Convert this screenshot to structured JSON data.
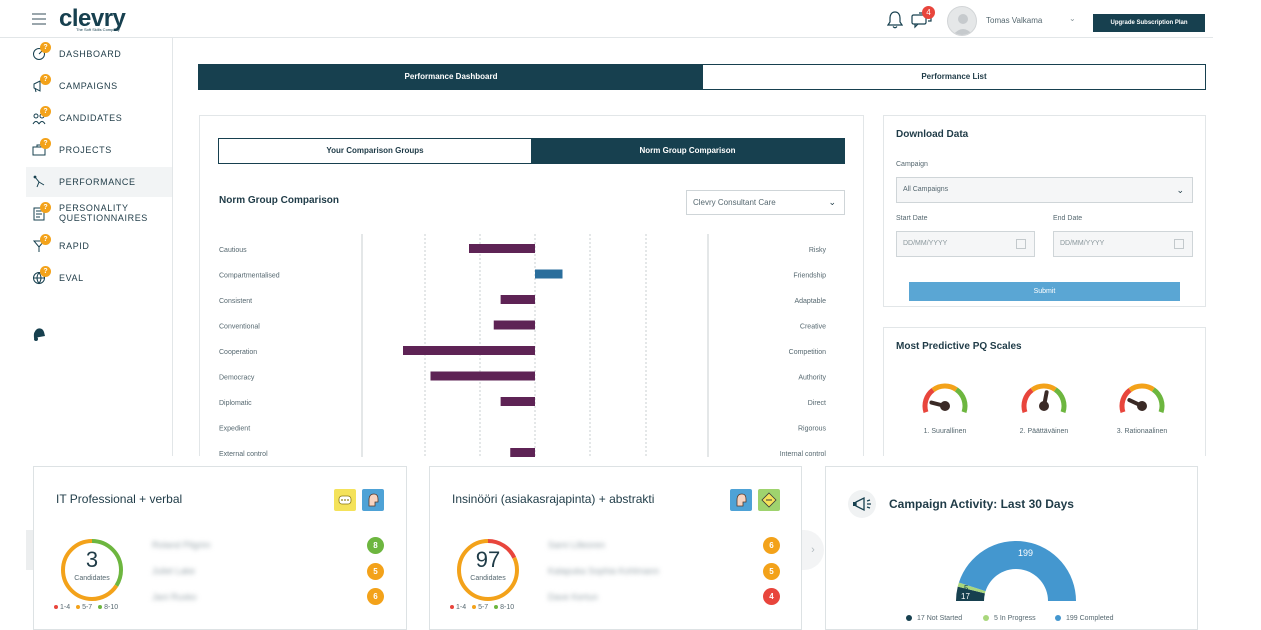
{
  "header": {
    "logo": "clevry",
    "logo_tagline": "The Soft Skills Company",
    "messages_badge": "4",
    "user_name": "Tomas Valkama",
    "upgrade_label": "Upgrade Subscription Plan"
  },
  "sidebar": {
    "items": [
      {
        "label": "DASHBOARD",
        "badge": "?"
      },
      {
        "label": "CAMPAIGNS",
        "badge": "?"
      },
      {
        "label": "CANDIDATES",
        "badge": "?"
      },
      {
        "label": "PROJECTS",
        "badge": "?"
      },
      {
        "label": "PERFORMANCE",
        "badge": ""
      },
      {
        "label": "PERSONALITY QUESTIONNAIRES",
        "badge": "?"
      },
      {
        "label": "RAPID",
        "badge": "?"
      },
      {
        "label": "EVAL",
        "badge": "?"
      }
    ]
  },
  "main_tabs": [
    {
      "label": "Performance Dashboard",
      "active": true
    },
    {
      "label": "Performance List",
      "active": false
    }
  ],
  "norm": {
    "tabs": [
      {
        "label": "Your Comparison Groups",
        "active": false
      },
      {
        "label": "Norm Group Comparison",
        "active": true
      }
    ],
    "title": "Norm Group Comparison",
    "select_value": "Clevry Consultant Care"
  },
  "chart_data": {
    "type": "bar",
    "orientation": "diverging-horizontal",
    "categories_left": [
      "Cautious",
      "Compartmentalised",
      "Consistent",
      "Conventional",
      "Cooperation",
      "Democracy",
      "Diplomatic",
      "Expedient",
      "External control"
    ],
    "categories_right": [
      "Risky",
      "Friendship",
      "Adaptable",
      "Creative",
      "Competition",
      "Authority",
      "Direct",
      "Rigorous",
      "Internal control"
    ],
    "values": [
      -2.4,
      1.0,
      -1.25,
      -1.5,
      -4.8,
      -3.8,
      -1.25,
      0,
      -0.9
    ],
    "xlim": [
      -6,
      6
    ],
    "colors": {
      "negative": "#5e2355",
      "positive": "#2a6e9c"
    },
    "grid": true
  },
  "download": {
    "title": "Download Data",
    "campaign_label": "Campaign",
    "campaign_value": "All Campaigns",
    "start_label": "Start Date",
    "start_placeholder": "DD/MM/YYYY",
    "end_label": "End Date",
    "end_placeholder": "DD/MM/YYYY",
    "submit_label": "Submit"
  },
  "pq": {
    "title": "Most Predictive PQ Scales",
    "gauges": [
      {
        "label": "1. Suurallinen",
        "value": 0.15
      },
      {
        "label": "2. Päättäväinen",
        "value": 0.55
      },
      {
        "label": "3. Rationaalinen",
        "value": 0.2
      }
    ]
  },
  "cards": [
    {
      "title": "IT Professional + verbal",
      "count": "3",
      "count_label": "Candidates",
      "legend": [
        "1-4",
        "5-7",
        "8-10"
      ],
      "rows": [
        {
          "name": "Roland Pilgrim",
          "score": "8",
          "color": "#6db63f"
        },
        {
          "name": "Juliet Lake",
          "score": "5",
          "color": "#f3a21a"
        },
        {
          "name": "Jani Rusko",
          "score": "6",
          "color": "#f3a21a"
        }
      ]
    },
    {
      "title": "Insinööri (asiakasrajapinta) + abstrakti",
      "count": "97",
      "count_label": "Candidates",
      "legend": [
        "1-4",
        "5-7",
        "8-10"
      ],
      "rows": [
        {
          "name": "Sami Lilleoren",
          "score": "6",
          "color": "#f3a21a"
        },
        {
          "name": "Kalapuka Sophia Kohlmann",
          "score": "5",
          "color": "#f3a21a"
        },
        {
          "name": "Dave Kertun",
          "score": "4",
          "color": "#e8453c"
        }
      ]
    }
  ],
  "activity": {
    "title": "Campaign Activity: Last 30 Days",
    "completed_value": "199",
    "in_progress_value": "5",
    "not_started_value": "17",
    "legend": [
      "17 Not Started",
      "5 In Progress",
      "199 Completed"
    ],
    "colors": {
      "not_started": "#17404f",
      "in_progress": "#a9d77c",
      "completed": "#4497cf"
    }
  }
}
